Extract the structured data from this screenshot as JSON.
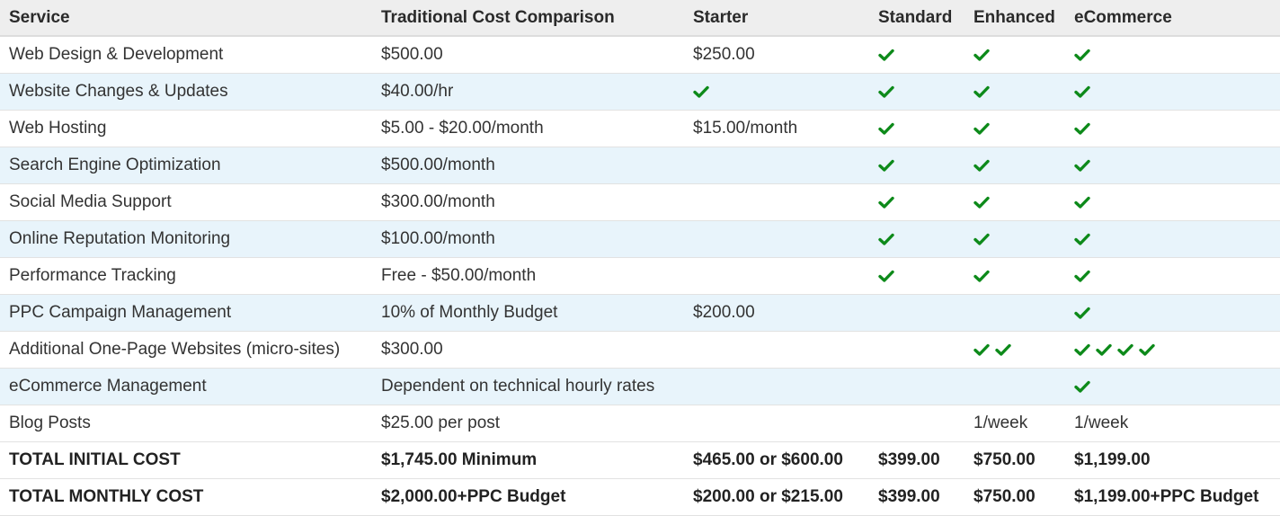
{
  "accent_check_color": "#0d8a1a",
  "row_stripe_color": "#e8f4fb",
  "header": [
    "Service",
    "Traditional Cost Comparison",
    "Starter",
    "Standard",
    "Enhanced",
    "eCommerce"
  ],
  "rows": [
    {
      "service": "Web Design & Development",
      "traditional": "$500.00",
      "starter": "$250.00",
      "standard": 1,
      "enhanced": 1,
      "ecommerce": 1
    },
    {
      "service": "Website Changes & Updates",
      "traditional": "$40.00/hr",
      "starter": 1,
      "standard": 1,
      "enhanced": 1,
      "ecommerce": 1
    },
    {
      "service": "Web Hosting",
      "traditional": "$5.00 - $20.00/month",
      "starter": "$15.00/month",
      "standard": 1,
      "enhanced": 1,
      "ecommerce": 1
    },
    {
      "service": "Search Engine Optimization",
      "traditional": "$500.00/month",
      "starter": "",
      "standard": 1,
      "enhanced": 1,
      "ecommerce": 1
    },
    {
      "service": "Social Media Support",
      "traditional": "$300.00/month",
      "starter": "",
      "standard": 1,
      "enhanced": 1,
      "ecommerce": 1
    },
    {
      "service": "Online Reputation Monitoring",
      "traditional": "$100.00/month",
      "starter": "",
      "standard": 1,
      "enhanced": 1,
      "ecommerce": 1
    },
    {
      "service": "Performance Tracking",
      "traditional": "Free - $50.00/month",
      "starter": "",
      "standard": 1,
      "enhanced": 1,
      "ecommerce": 1
    },
    {
      "service": "PPC Campaign Management",
      "traditional": "10% of Monthly Budget",
      "starter": "$200.00",
      "standard": "",
      "enhanced": "",
      "ecommerce": 1
    },
    {
      "service": "Additional One-Page Websites (micro-sites)",
      "traditional": "$300.00",
      "starter": "",
      "standard": "",
      "enhanced": 2,
      "ecommerce": 4
    },
    {
      "service": "eCommerce Management",
      "traditional": "Dependent on technical hourly rates",
      "starter": "",
      "standard": "",
      "enhanced": "",
      "ecommerce": 1
    },
    {
      "service": "Blog Posts",
      "traditional": "$25.00 per post",
      "starter": "",
      "standard": "",
      "enhanced": "1/week",
      "ecommerce": "1/week"
    }
  ],
  "totals": [
    {
      "service": "TOTAL INITIAL COST",
      "traditional": "$1,745.00 Minimum",
      "starter": "$465.00 or $600.00",
      "standard": "$399.00",
      "enhanced": "$750.00",
      "ecommerce": "$1,199.00"
    },
    {
      "service": "TOTAL MONTHLY COST",
      "traditional": "$2,000.00+PPC Budget",
      "starter": "$200.00 or $215.00",
      "standard": "$399.00",
      "enhanced": "$750.00",
      "ecommerce": "$1,199.00+PPC Budget"
    }
  ]
}
